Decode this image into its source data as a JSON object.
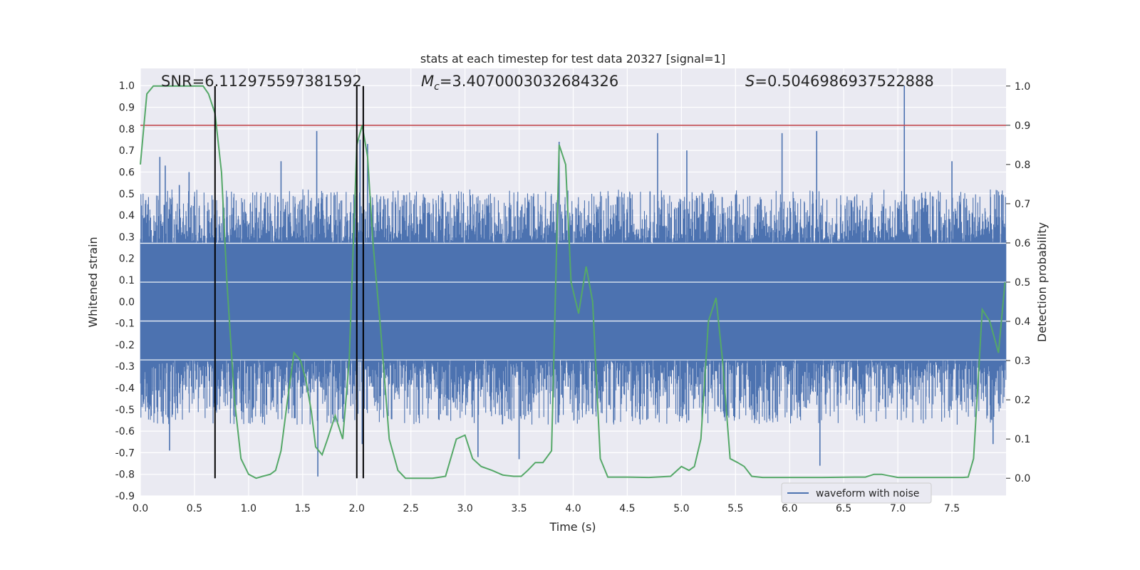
{
  "chart_data": {
    "type": "line",
    "title": "stats at each timestep for test data 20327 [signal=1]",
    "xlabel": "Time (s)",
    "ylabel_left": "Whitened strain",
    "ylabel_right": "Detection probability",
    "xlim": [
      0,
      8
    ],
    "ylim_left": [
      -0.9,
      1.08
    ],
    "ylim_right": [
      -0.045,
      1.045
    ],
    "grid": true,
    "legend_position": "lower-right",
    "x_ticks": [
      "0.0",
      "0.5",
      "1.0",
      "1.5",
      "2.0",
      "2.5",
      "3.0",
      "3.5",
      "4.0",
      "4.5",
      "5.0",
      "5.5",
      "6.0",
      "6.5",
      "7.0",
      "7.5"
    ],
    "y_ticks_left": [
      "1.0",
      "0.9",
      "0.8",
      "0.7",
      "0.6",
      "0.5",
      "0.4",
      "0.3",
      "0.2",
      "0.1",
      "0.0",
      "-0.1",
      "-0.2",
      "-0.3",
      "-0.4",
      "-0.5",
      "-0.6",
      "-0.7",
      "-0.8",
      "-0.9"
    ],
    "y_ticks_right": [
      "1.0",
      "0.9",
      "0.8",
      "0.7",
      "0.6",
      "0.5",
      "0.4",
      "0.3",
      "0.2",
      "0.1",
      "0.0"
    ],
    "annotations": {
      "snr": "SNR=6.112975597381592",
      "mc_symbol": "M",
      "mc_sub": "c",
      "mc_value": "=3.4070003032684326",
      "s_symbol": "S",
      "s_value": "=0.5046986937522888"
    },
    "threshold_probability": 0.9,
    "vertical_markers": [
      0.69,
      2.0,
      2.06
    ],
    "waveform": {
      "name": "waveform with noise",
      "color": "#4c72b0",
      "band_upper": 0.27,
      "band_lower": -0.27,
      "peaks": [
        [
          0.05,
          0.47
        ],
        [
          0.18,
          0.67
        ],
        [
          0.23,
          0.63
        ],
        [
          0.36,
          0.54
        ],
        [
          0.45,
          0.6
        ],
        [
          1.3,
          0.65
        ],
        [
          1.63,
          0.79
        ],
        [
          1.64,
          -0.81
        ],
        [
          2.03,
          0.75
        ],
        [
          2.1,
          0.73
        ],
        [
          2.05,
          -0.66
        ],
        [
          3.12,
          -0.72
        ],
        [
          3.5,
          -0.73
        ],
        [
          3.87,
          0.74
        ],
        [
          4.78,
          0.78
        ],
        [
          5.05,
          0.7
        ],
        [
          5.93,
          0.78
        ],
        [
          6.25,
          0.79
        ],
        [
          6.28,
          -0.76
        ],
        [
          7.06,
          1.0
        ],
        [
          7.5,
          0.65
        ],
        [
          7.88,
          -0.66
        ],
        [
          0.27,
          -0.69
        ]
      ],
      "envelope_upper": 0.42,
      "envelope_lower": -0.47
    },
    "probability": {
      "color": "#55a868",
      "x": [
        0.0,
        0.06,
        0.12,
        0.2,
        0.3,
        0.4,
        0.5,
        0.58,
        0.63,
        0.69,
        0.75,
        0.8,
        0.87,
        0.93,
        1.0,
        1.07,
        1.13,
        1.2,
        1.25,
        1.3,
        1.36,
        1.42,
        1.48,
        1.53,
        1.58,
        1.62,
        1.68,
        1.73,
        1.8,
        1.87,
        1.93,
        2.0,
        2.05,
        2.1,
        2.15,
        2.22,
        2.3,
        2.38,
        2.45,
        2.55,
        2.7,
        2.82,
        2.92,
        3.0,
        3.07,
        3.15,
        3.25,
        3.35,
        3.45,
        3.52,
        3.58,
        3.65,
        3.72,
        3.8,
        3.87,
        3.93,
        3.98,
        4.05,
        4.12,
        4.18,
        4.25,
        4.32,
        4.5,
        4.7,
        4.9,
        5.0,
        5.07,
        5.12,
        5.18,
        5.25,
        5.32,
        5.38,
        5.45,
        5.52,
        5.58,
        5.65,
        5.75,
        6.0,
        6.3,
        6.6,
        6.7,
        6.78,
        6.85,
        7.0,
        7.3,
        7.6,
        7.65,
        7.7,
        7.78,
        7.85,
        7.93,
        7.99
      ],
      "y": [
        0.8,
        0.98,
        1.0,
        1.0,
        1.0,
        1.0,
        1.0,
        1.0,
        0.98,
        0.93,
        0.78,
        0.5,
        0.2,
        0.05,
        0.01,
        0.0,
        0.005,
        0.01,
        0.02,
        0.07,
        0.2,
        0.32,
        0.3,
        0.25,
        0.17,
        0.08,
        0.06,
        0.1,
        0.16,
        0.1,
        0.3,
        0.85,
        0.9,
        0.82,
        0.6,
        0.38,
        0.1,
        0.02,
        0.0,
        0.0,
        0.0,
        0.005,
        0.1,
        0.11,
        0.05,
        0.03,
        0.02,
        0.008,
        0.005,
        0.005,
        0.02,
        0.04,
        0.04,
        0.07,
        0.85,
        0.8,
        0.5,
        0.42,
        0.54,
        0.45,
        0.05,
        0.003,
        0.003,
        0.002,
        0.005,
        0.03,
        0.02,
        0.03,
        0.1,
        0.4,
        0.46,
        0.3,
        0.05,
        0.04,
        0.03,
        0.005,
        0.002,
        0.002,
        0.002,
        0.003,
        0.003,
        0.01,
        0.01,
        0.002,
        0.002,
        0.002,
        0.003,
        0.05,
        0.43,
        0.4,
        0.32,
        0.5
      ]
    }
  }
}
